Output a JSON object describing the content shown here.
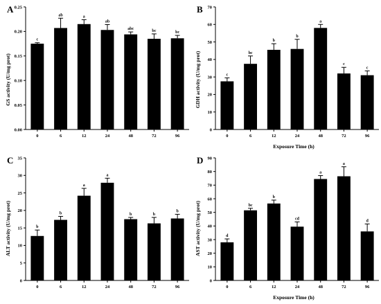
{
  "figure": {
    "bar_color": "#000000",
    "background": "#ffffff"
  },
  "chart_data": [
    {
      "type": "bar",
      "panel": "A",
      "title": "",
      "xlabel": "",
      "ylabel": "GS activity (U/mg prot)",
      "categories": [
        "0",
        "6",
        "12",
        "24",
        "48",
        "72",
        "96"
      ],
      "values": [
        0.175,
        0.207,
        0.215,
        0.203,
        0.194,
        0.185,
        0.186
      ],
      "errors": [
        0.002,
        0.02,
        0.009,
        0.011,
        0.005,
        0.01,
        0.006
      ],
      "significance": [
        "c",
        "ab",
        "a",
        "ab",
        "abc",
        "bc",
        "bc"
      ],
      "ylim": [
        0,
        0.25
      ],
      "yticks": [
        "0.00",
        "0.05",
        "0.10",
        "0.15",
        "0.20",
        "0.25"
      ]
    },
    {
      "type": "bar",
      "panel": "B",
      "title": "",
      "xlabel": "Exposure Time (h)",
      "ylabel": "GDH activity (U/mg prot)",
      "categories": [
        "0",
        "6",
        "12",
        "24",
        "48",
        "72",
        "96"
      ],
      "values": [
        27.5,
        37.5,
        45.5,
        46.0,
        58.0,
        32.0,
        31.0
      ],
      "errors": [
        2.0,
        4.5,
        3.5,
        5.5,
        2.0,
        3.5,
        2.5
      ],
      "significance": [
        "c",
        "bc",
        "b",
        "b",
        "a",
        "c",
        "c"
      ],
      "ylim": [
        0,
        70
      ],
      "yticks": [
        "0",
        "10",
        "20",
        "30",
        "40",
        "50",
        "60",
        "70"
      ]
    },
    {
      "type": "bar",
      "panel": "C",
      "title": "",
      "xlabel": "",
      "ylabel": "ALT activity (U/mg prot)",
      "categories": [
        "0",
        "6",
        "12",
        "24",
        "48",
        "72",
        "96"
      ],
      "values": [
        12.7,
        17.3,
        24.2,
        27.9,
        17.5,
        16.3,
        17.7
      ],
      "errors": [
        1.7,
        1.0,
        2.1,
        1.3,
        0.5,
        1.7,
        1.2
      ],
      "significance": [
        "b",
        "b",
        "a",
        "a",
        "b",
        "b",
        "b"
      ],
      "ylim": [
        0,
        35
      ],
      "yticks": [
        "0",
        "5",
        "10",
        "15",
        "20",
        "25",
        "30",
        "35"
      ]
    },
    {
      "type": "bar",
      "panel": "D",
      "title": "",
      "xlabel": "Exposure Time (h)",
      "ylabel": "AST activity (U/mg prot)",
      "categories": [
        "0",
        "6",
        "12",
        "24",
        "48",
        "72",
        "96"
      ],
      "values": [
        28.0,
        51.5,
        56.5,
        39.5,
        74.5,
        76.5,
        36.0
      ],
      "errors": [
        2.5,
        1.5,
        2.5,
        3.5,
        2.5,
        7.0,
        5.5
      ],
      "significance": [
        "d",
        "bc",
        "b",
        "cd",
        "a",
        "a",
        "d"
      ],
      "ylim": [
        0,
        90
      ],
      "yticks": [
        "0",
        "10",
        "20",
        "30",
        "40",
        "50",
        "60",
        "70",
        "80",
        "90"
      ]
    }
  ]
}
